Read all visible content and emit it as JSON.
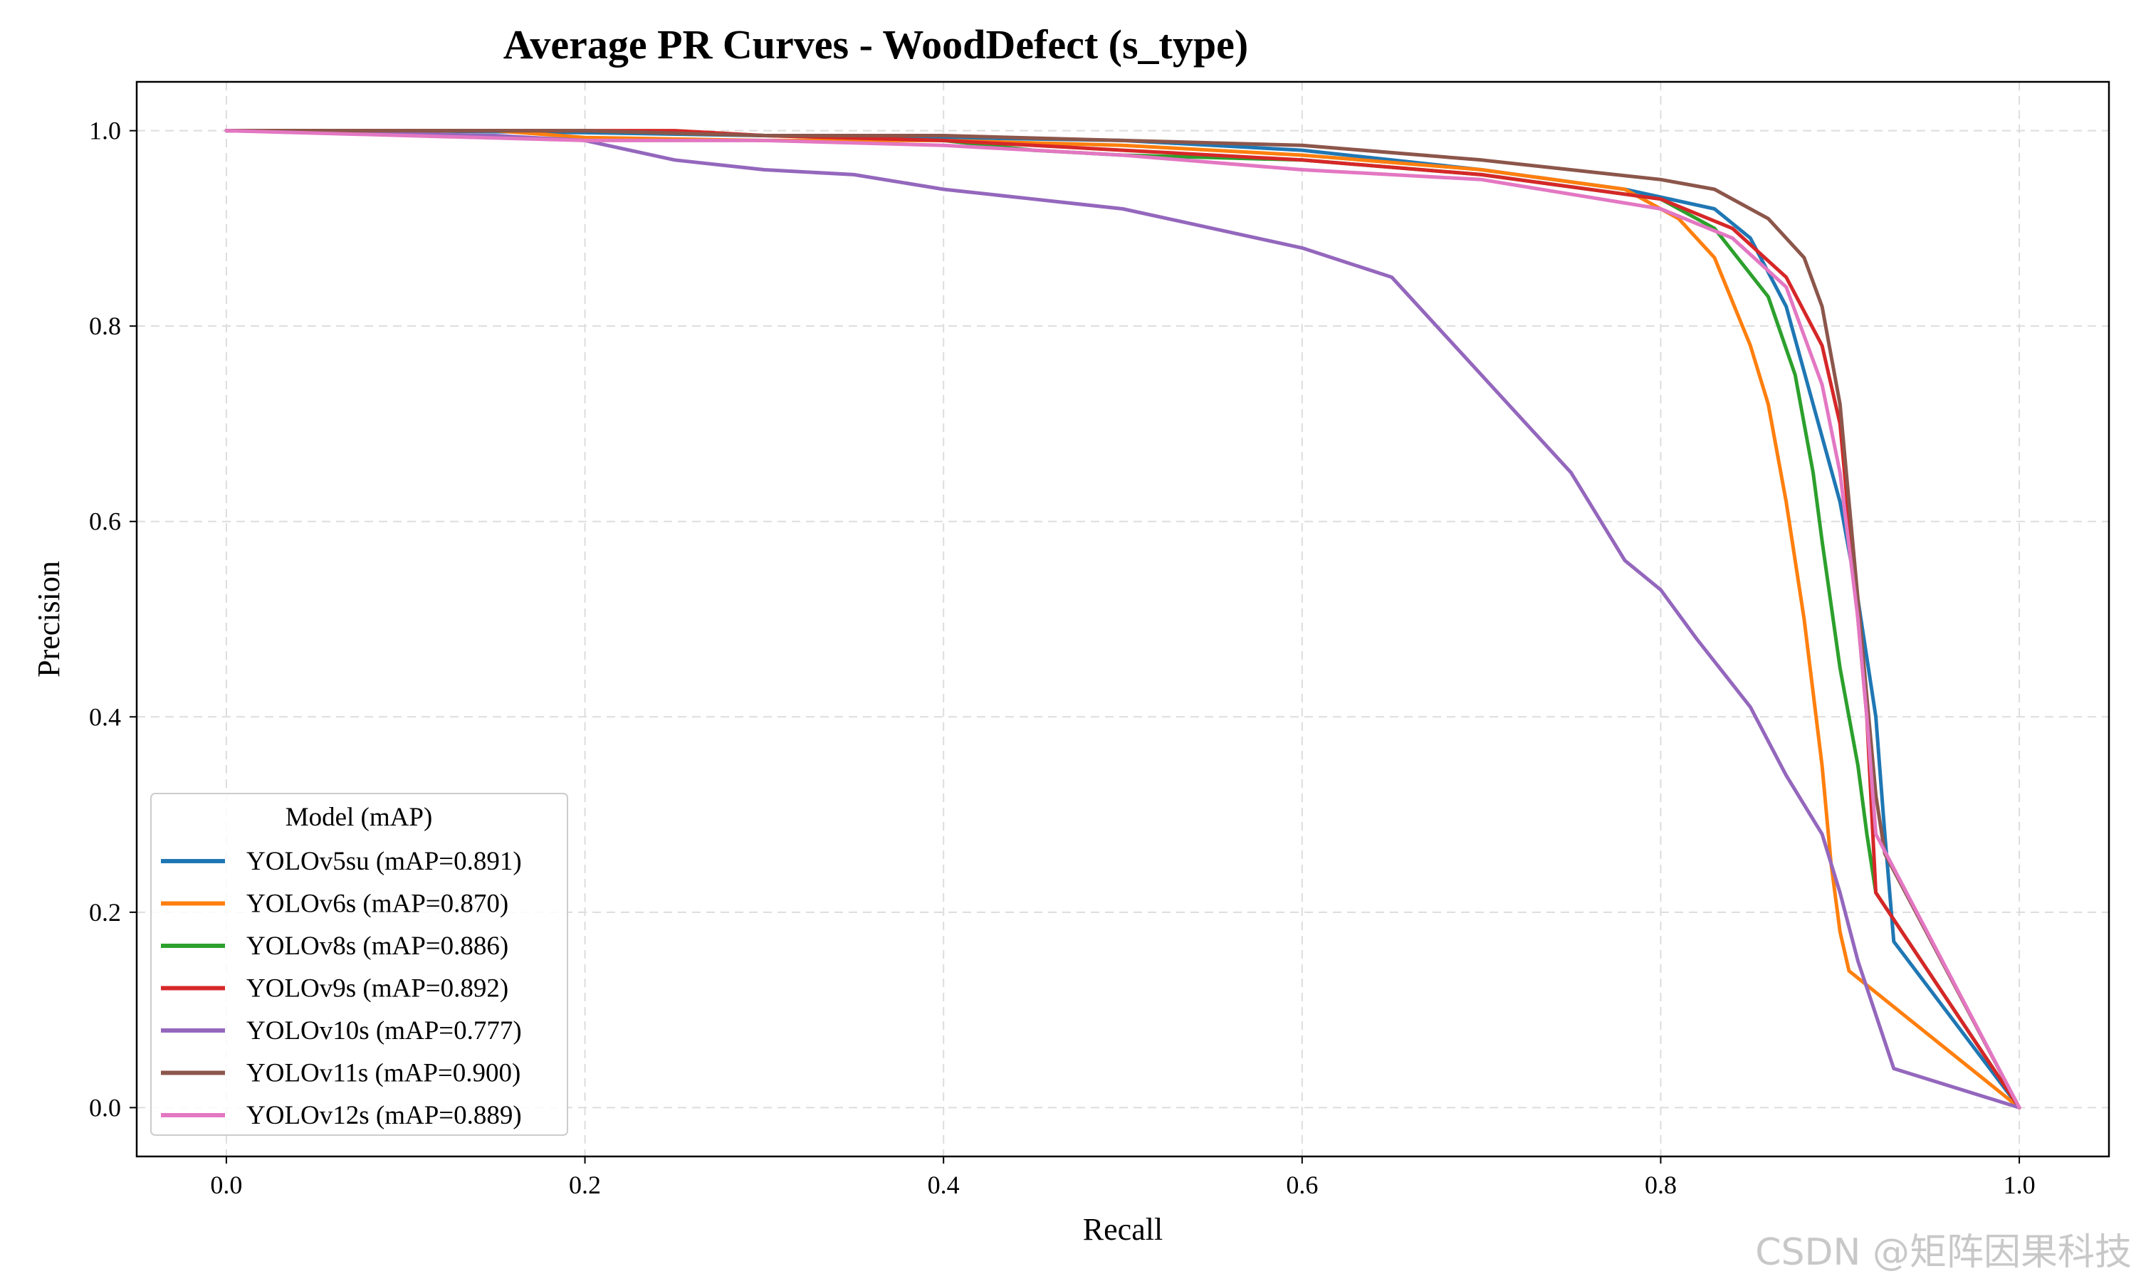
{
  "chart_data": {
    "type": "line",
    "title": "Average PR Curves - WoodDefect (s_type)",
    "xlabel": "Recall",
    "ylabel": "Precision",
    "xlim": [
      -0.05,
      1.05
    ],
    "ylim": [
      -0.05,
      1.05
    ],
    "grid": true,
    "xticks": [
      0.0,
      0.2,
      0.4,
      0.6,
      0.8,
      1.0
    ],
    "yticks": [
      0.0,
      0.2,
      0.4,
      0.6,
      0.8,
      1.0
    ],
    "xtick_labels": [
      "0.0",
      "0.2",
      "0.4",
      "0.6",
      "0.8",
      "1.0"
    ],
    "ytick_labels": [
      "0.0",
      "0.2",
      "0.4",
      "0.6",
      "0.8",
      "1.0"
    ],
    "legend": {
      "title": "Model (mAP)",
      "placement": "lower-left"
    },
    "series": [
      {
        "name": "YOLOv5su (mAP=0.891)",
        "color": "#1f77b4",
        "x": [
          0.0,
          0.1,
          0.2,
          0.3,
          0.4,
          0.5,
          0.6,
          0.7,
          0.78,
          0.83,
          0.85,
          0.87,
          0.885,
          0.9,
          0.91,
          0.92,
          0.925,
          0.93,
          1.0
        ],
        "y": [
          1.0,
          1.0,
          0.998,
          0.995,
          0.993,
          0.99,
          0.98,
          0.96,
          0.94,
          0.92,
          0.89,
          0.82,
          0.72,
          0.62,
          0.52,
          0.4,
          0.28,
          0.17,
          0.0
        ]
      },
      {
        "name": "YOLOv6s (mAP=0.870)",
        "color": "#ff7f0e",
        "x": [
          0.0,
          0.15,
          0.2,
          0.3,
          0.4,
          0.5,
          0.6,
          0.7,
          0.78,
          0.81,
          0.83,
          0.85,
          0.86,
          0.87,
          0.88,
          0.89,
          0.895,
          0.9,
          0.905,
          1.0
        ],
        "y": [
          1.0,
          1.0,
          0.993,
          0.99,
          0.99,
          0.985,
          0.975,
          0.96,
          0.94,
          0.91,
          0.87,
          0.78,
          0.72,
          0.62,
          0.5,
          0.35,
          0.25,
          0.18,
          0.14,
          0.0
        ]
      },
      {
        "name": "YOLOv8s (mAP=0.886)",
        "color": "#2ca02c",
        "x": [
          0.0,
          0.2,
          0.4,
          0.45,
          0.5,
          0.6,
          0.7,
          0.8,
          0.83,
          0.86,
          0.875,
          0.885,
          0.89,
          0.9,
          0.91,
          0.915,
          0.92,
          1.0
        ],
        "y": [
          1.0,
          1.0,
          0.99,
          0.98,
          0.975,
          0.97,
          0.955,
          0.93,
          0.9,
          0.83,
          0.75,
          0.65,
          0.58,
          0.45,
          0.35,
          0.28,
          0.22,
          0.0
        ]
      },
      {
        "name": "YOLOv9s (mAP=0.892)",
        "color": "#d62728",
        "x": [
          0.0,
          0.25,
          0.3,
          0.4,
          0.5,
          0.6,
          0.7,
          0.8,
          0.84,
          0.87,
          0.89,
          0.9,
          0.905,
          0.91,
          0.915,
          0.92,
          1.0
        ],
        "y": [
          1.0,
          1.0,
          0.995,
          0.99,
          0.98,
          0.97,
          0.955,
          0.93,
          0.9,
          0.85,
          0.78,
          0.7,
          0.6,
          0.5,
          0.4,
          0.22,
          0.0
        ]
      },
      {
        "name": "YOLOv10s (mAP=0.777)",
        "color": "#9467bd",
        "x": [
          0.0,
          0.15,
          0.2,
          0.25,
          0.3,
          0.35,
          0.4,
          0.45,
          0.5,
          0.55,
          0.6,
          0.65,
          0.7,
          0.75,
          0.78,
          0.8,
          0.82,
          0.85,
          0.87,
          0.89,
          0.9,
          0.91,
          0.93,
          1.0
        ],
        "y": [
          1.0,
          0.995,
          0.99,
          0.97,
          0.96,
          0.955,
          0.94,
          0.93,
          0.92,
          0.9,
          0.88,
          0.85,
          0.75,
          0.65,
          0.56,
          0.53,
          0.48,
          0.41,
          0.34,
          0.28,
          0.22,
          0.15,
          0.04,
          0.0
        ]
      },
      {
        "name": "YOLOv11s (mAP=0.900)",
        "color": "#8c564b",
        "x": [
          0.0,
          0.1,
          0.2,
          0.3,
          0.4,
          0.5,
          0.6,
          0.7,
          0.8,
          0.83,
          0.86,
          0.88,
          0.89,
          0.9,
          0.905,
          0.91,
          0.915,
          0.92,
          0.925,
          1.0
        ],
        "y": [
          1.0,
          1.0,
          1.0,
          0.995,
          0.995,
          0.99,
          0.985,
          0.97,
          0.95,
          0.94,
          0.91,
          0.87,
          0.82,
          0.72,
          0.62,
          0.52,
          0.42,
          0.32,
          0.26,
          0.0
        ]
      },
      {
        "name": "YOLOv12s (mAP=0.889)",
        "color": "#e377c2",
        "x": [
          0.0,
          0.1,
          0.2,
          0.3,
          0.4,
          0.5,
          0.6,
          0.7,
          0.8,
          0.84,
          0.87,
          0.89,
          0.9,
          0.91,
          0.915,
          0.92,
          1.0
        ],
        "y": [
          1.0,
          0.995,
          0.99,
          0.99,
          0.985,
          0.975,
          0.96,
          0.95,
          0.92,
          0.89,
          0.84,
          0.74,
          0.65,
          0.5,
          0.4,
          0.28,
          0.0
        ]
      }
    ]
  },
  "watermark": "CSDN @矩阵因果科技"
}
